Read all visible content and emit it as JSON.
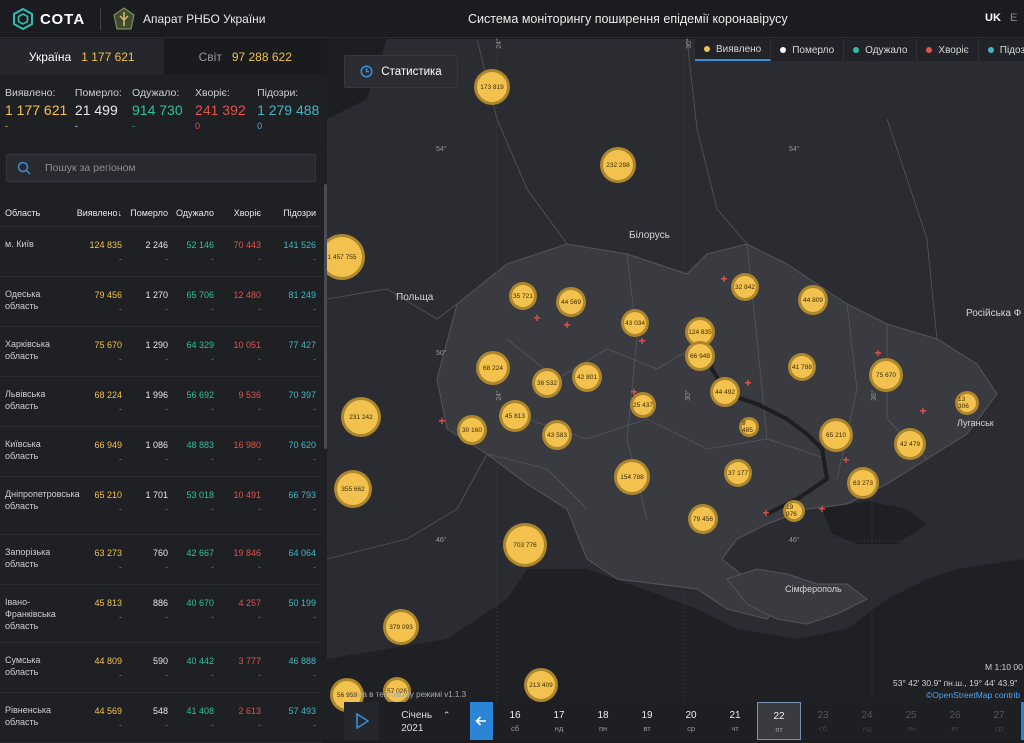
{
  "header": {
    "logo_text": "СОТА",
    "org_name": "Апарат РНБО України",
    "app_title": "Система моніторингу поширення епідемії коронавірусу",
    "lang_active": "UK",
    "lang_other": "E"
  },
  "totals": {
    "ukraine_label": "Україна",
    "ukraine_value": "1 177 621",
    "world_label": "Світ",
    "world_value": "97 288 622"
  },
  "summary": [
    {
      "label": "Виявлено:",
      "value": "1 177 621",
      "delta": "-",
      "color": "#f2c14e"
    },
    {
      "label": "Померло:",
      "value": "21 499",
      "delta": "-",
      "color": "#e8e8e8"
    },
    {
      "label": "Одужало:",
      "value": "914 730",
      "delta": "-",
      "color": "#2fbf9f"
    },
    {
      "label": "Хворіє:",
      "value": "241 392",
      "delta": "0",
      "color": "#e0534a"
    },
    {
      "label": "Підозри:",
      "value": "1 279 488",
      "delta": "0",
      "color": "#44b6c0"
    }
  ],
  "search": {
    "placeholder": "Пошук за регіоном"
  },
  "table": {
    "headers": {
      "region": "Область",
      "detected": "Виявлено",
      "sort_arrow": "↓",
      "died": "Померло",
      "recovered": "Одужало",
      "sick": "Хворіє",
      "suspect": "Підозри"
    },
    "rows": [
      {
        "name": "м. Київ",
        "detected": "124 835",
        "died": "2 246",
        "recovered": "52 146",
        "sick": "70 443",
        "suspect": "141 526"
      },
      {
        "name": "Одеська область",
        "detected": "79 456",
        "died": "1 270",
        "recovered": "65 706",
        "sick": "12 480",
        "suspect": "81 249"
      },
      {
        "name": "Харківська область",
        "detected": "75 670",
        "died": "1 290",
        "recovered": "64 329",
        "sick": "10 051",
        "suspect": "77 427"
      },
      {
        "name": "Львівська область",
        "detected": "68 224",
        "died": "1 996",
        "recovered": "56 692",
        "sick": "9 536",
        "suspect": "70 397"
      },
      {
        "name": "Київська область",
        "detected": "66 949",
        "died": "1 086",
        "recovered": "48 883",
        "sick": "16 980",
        "suspect": "70 620"
      },
      {
        "name": "Дніпропетровська область",
        "detected": "65 210",
        "died": "1 701",
        "recovered": "53 018",
        "sick": "10 491",
        "suspect": "66 793"
      },
      {
        "name": "Запорізька область",
        "detected": "63 273",
        "died": "760",
        "recovered": "42 667",
        "sick": "19 846",
        "suspect": "64 064"
      },
      {
        "name": "Івано-Франківська область",
        "detected": "45 813",
        "died": "886",
        "recovered": "40 670",
        "sick": "4 257",
        "suspect": "50 199"
      },
      {
        "name": "Сумська область",
        "detected": "44 809",
        "died": "590",
        "recovered": "40 442",
        "sick": "3 777",
        "suspect": "46 888"
      },
      {
        "name": "Рівненська область",
        "detected": "44 569",
        "died": "548",
        "recovered": "41 408",
        "sick": "2 613",
        "suspect": "57 493"
      }
    ],
    "dash": "-"
  },
  "map": {
    "stat_button": "Статистика",
    "legend": [
      {
        "label": "Виявлено",
        "color": "#f2c14e"
      },
      {
        "label": "Померло",
        "color": "#ffffff"
      },
      {
        "label": "Одужало",
        "color": "#2fbf9f"
      },
      {
        "label": "Хворіє",
        "color": "#e0534a"
      },
      {
        "label": "Підозр",
        "color": "#44b6c0"
      }
    ],
    "labels": {
      "belarus": "Білорусь",
      "poland": "Польща",
      "russia": "Російська Ф",
      "luhansk": "Луганськ",
      "simferopol": "Сімферополь"
    },
    "coords": {
      "lat54a": "54°",
      "lat54b": "54°",
      "lat50": "50°",
      "lat46": "46°",
      "lat46b": "46°",
      "lon30": "30°",
      "lon24": "24°",
      "lon36": "36°",
      "lonB": "30°",
      "lon24b": "24°"
    },
    "clusters": [
      "173 819",
      "232 298",
      "1 457 755",
      "35 721",
      "44 569",
      "43 034",
      "32 842",
      "44 809",
      "124 835",
      "66 949",
      "68 224",
      "36 532",
      "42 801",
      "41 788",
      "75 670",
      "231 242",
      "45 813",
      "25 437",
      "44 492",
      "13 306",
      "30 160",
      "43 583",
      "9 485",
      "65 210",
      "42 479",
      "355 662",
      "154 788",
      "37 177",
      "63 273",
      "79 456",
      "19 976",
      "703 776",
      "379 093",
      "56 959",
      "57 026",
      "213 409"
    ],
    "scale": "M 1:10 00",
    "gps": "53° 42' 30.9\" пн.ш., 19° 44' 43.9\"",
    "osm": "©OpenStreetMap contrib",
    "testmode": "ма    в тестовому режимі v1.1.3"
  },
  "timeline": {
    "month": "Січень",
    "year": "2021",
    "days": [
      {
        "d": "16",
        "w": "сб"
      },
      {
        "d": "17",
        "w": "нд"
      },
      {
        "d": "18",
        "w": "пн"
      },
      {
        "d": "19",
        "w": "вт"
      },
      {
        "d": "20",
        "w": "ср"
      },
      {
        "d": "21",
        "w": "чт"
      },
      {
        "d": "22",
        "w": "пт"
      },
      {
        "d": "23",
        "w": "сб"
      },
      {
        "d": "24",
        "w": "нд"
      },
      {
        "d": "25",
        "w": "пн"
      },
      {
        "d": "26",
        "w": "вт"
      },
      {
        "d": "27",
        "w": "ср"
      }
    ],
    "selected_index": 6
  }
}
